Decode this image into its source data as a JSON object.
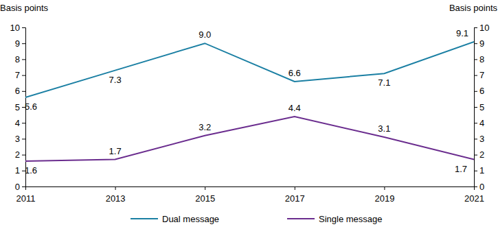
{
  "chart_data": {
    "type": "line",
    "y_label": "Basis points",
    "y2_label": "Basis points",
    "x": [
      2011,
      2013,
      2015,
      2017,
      2019,
      2021
    ],
    "xlim": [
      2011,
      2021
    ],
    "xticks": [
      2011,
      2013,
      2015,
      2017,
      2019,
      2021
    ],
    "ylim": [
      0,
      10
    ],
    "yticks": [
      0,
      1,
      2,
      3,
      4,
      5,
      6,
      7,
      8,
      9,
      10
    ],
    "y2lim": [
      0,
      10
    ],
    "y2ticks": [
      0,
      1,
      2,
      3,
      4,
      5,
      6,
      7,
      8,
      9,
      10
    ],
    "grid": false,
    "legend": "bottom",
    "data_labels": true,
    "series": [
      {
        "name": "Dual message",
        "color": "#1a7fa3",
        "values": [
          5.6,
          7.3,
          9.0,
          6.6,
          7.1,
          9.1
        ],
        "value_labels": [
          "5.6",
          "7.3",
          "9.0",
          "6.6",
          "7.1",
          "9.1"
        ]
      },
      {
        "name": "Single message",
        "color": "#6a2c8e",
        "values": [
          1.6,
          1.7,
          3.2,
          4.4,
          3.1,
          1.7
        ]
      }
    ]
  }
}
